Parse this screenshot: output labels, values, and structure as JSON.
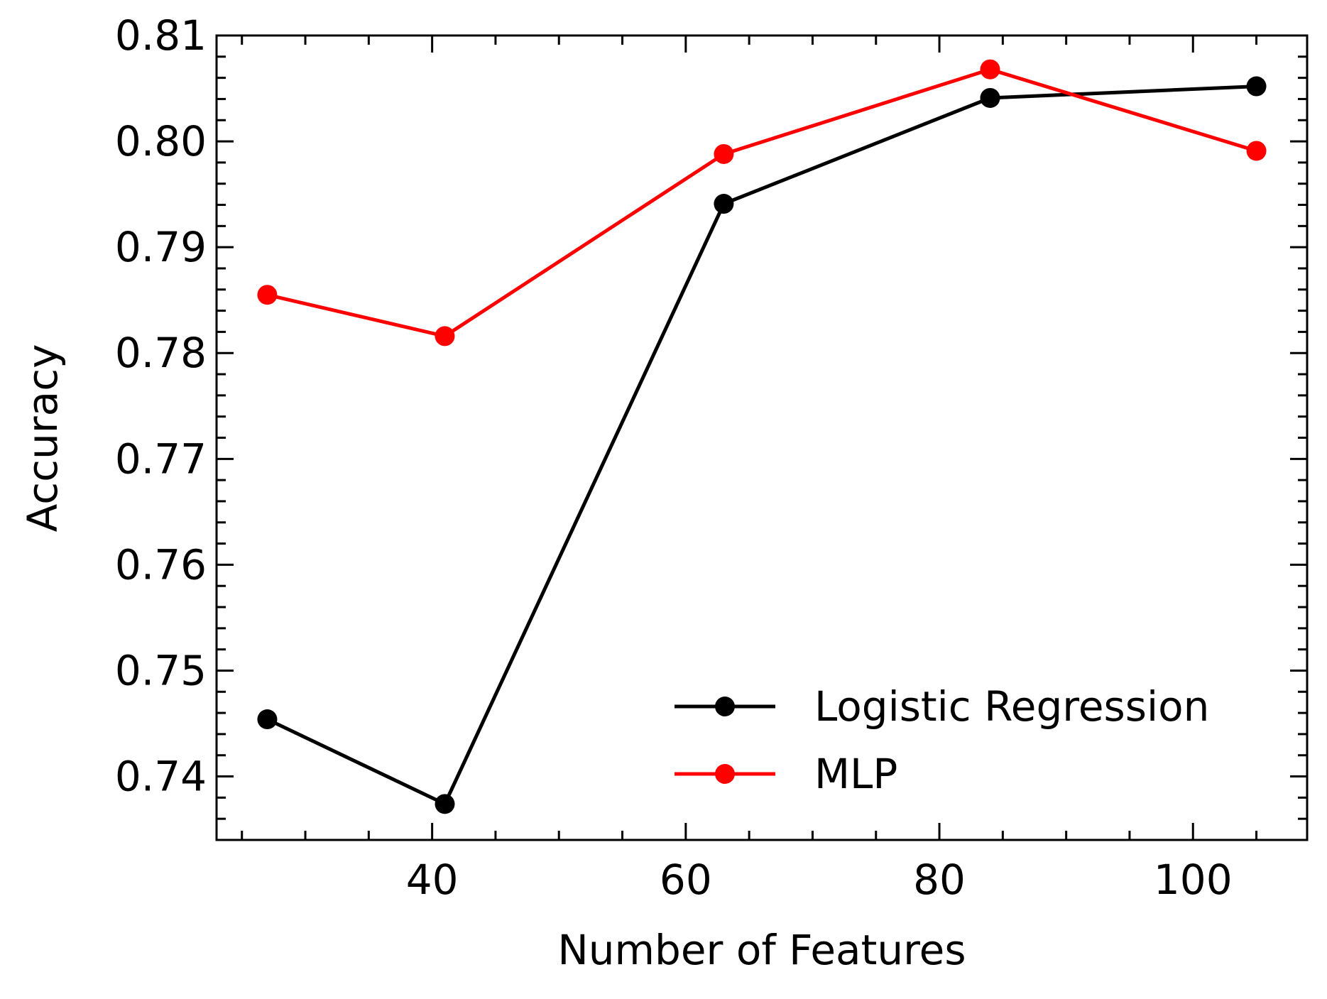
{
  "chart_data": {
    "type": "line",
    "title": "",
    "xlabel": "Number of Features",
    "ylabel": "Accuracy",
    "xlim": [
      23,
      109
    ],
    "ylim": [
      0.734,
      0.81
    ],
    "x_ticks": [
      40,
      60,
      80,
      100
    ],
    "x_tick_labels": [
      "40",
      "60",
      "80",
      "100"
    ],
    "x_minor_step": 5,
    "y_ticks": [
      0.74,
      0.75,
      0.76,
      0.77,
      0.78,
      0.79,
      0.8,
      0.81
    ],
    "y_tick_labels": [
      "0.74",
      "0.75",
      "0.76",
      "0.77",
      "0.78",
      "0.79",
      "0.80",
      "0.81"
    ],
    "y_minor_step": 0.002,
    "grid": false,
    "legend_position": "lower-right",
    "x": [
      27,
      41,
      63,
      84,
      105
    ],
    "series": [
      {
        "name": "Logistic Regression",
        "color": "#000000",
        "marker": "circle",
        "values": [
          0.7454,
          0.7374,
          0.7941,
          0.8041,
          0.8052
        ]
      },
      {
        "name": "MLP",
        "color": "#ff0000",
        "marker": "circle",
        "values": [
          0.7855,
          0.7816,
          0.7988,
          0.8068,
          0.7991
        ]
      }
    ]
  }
}
